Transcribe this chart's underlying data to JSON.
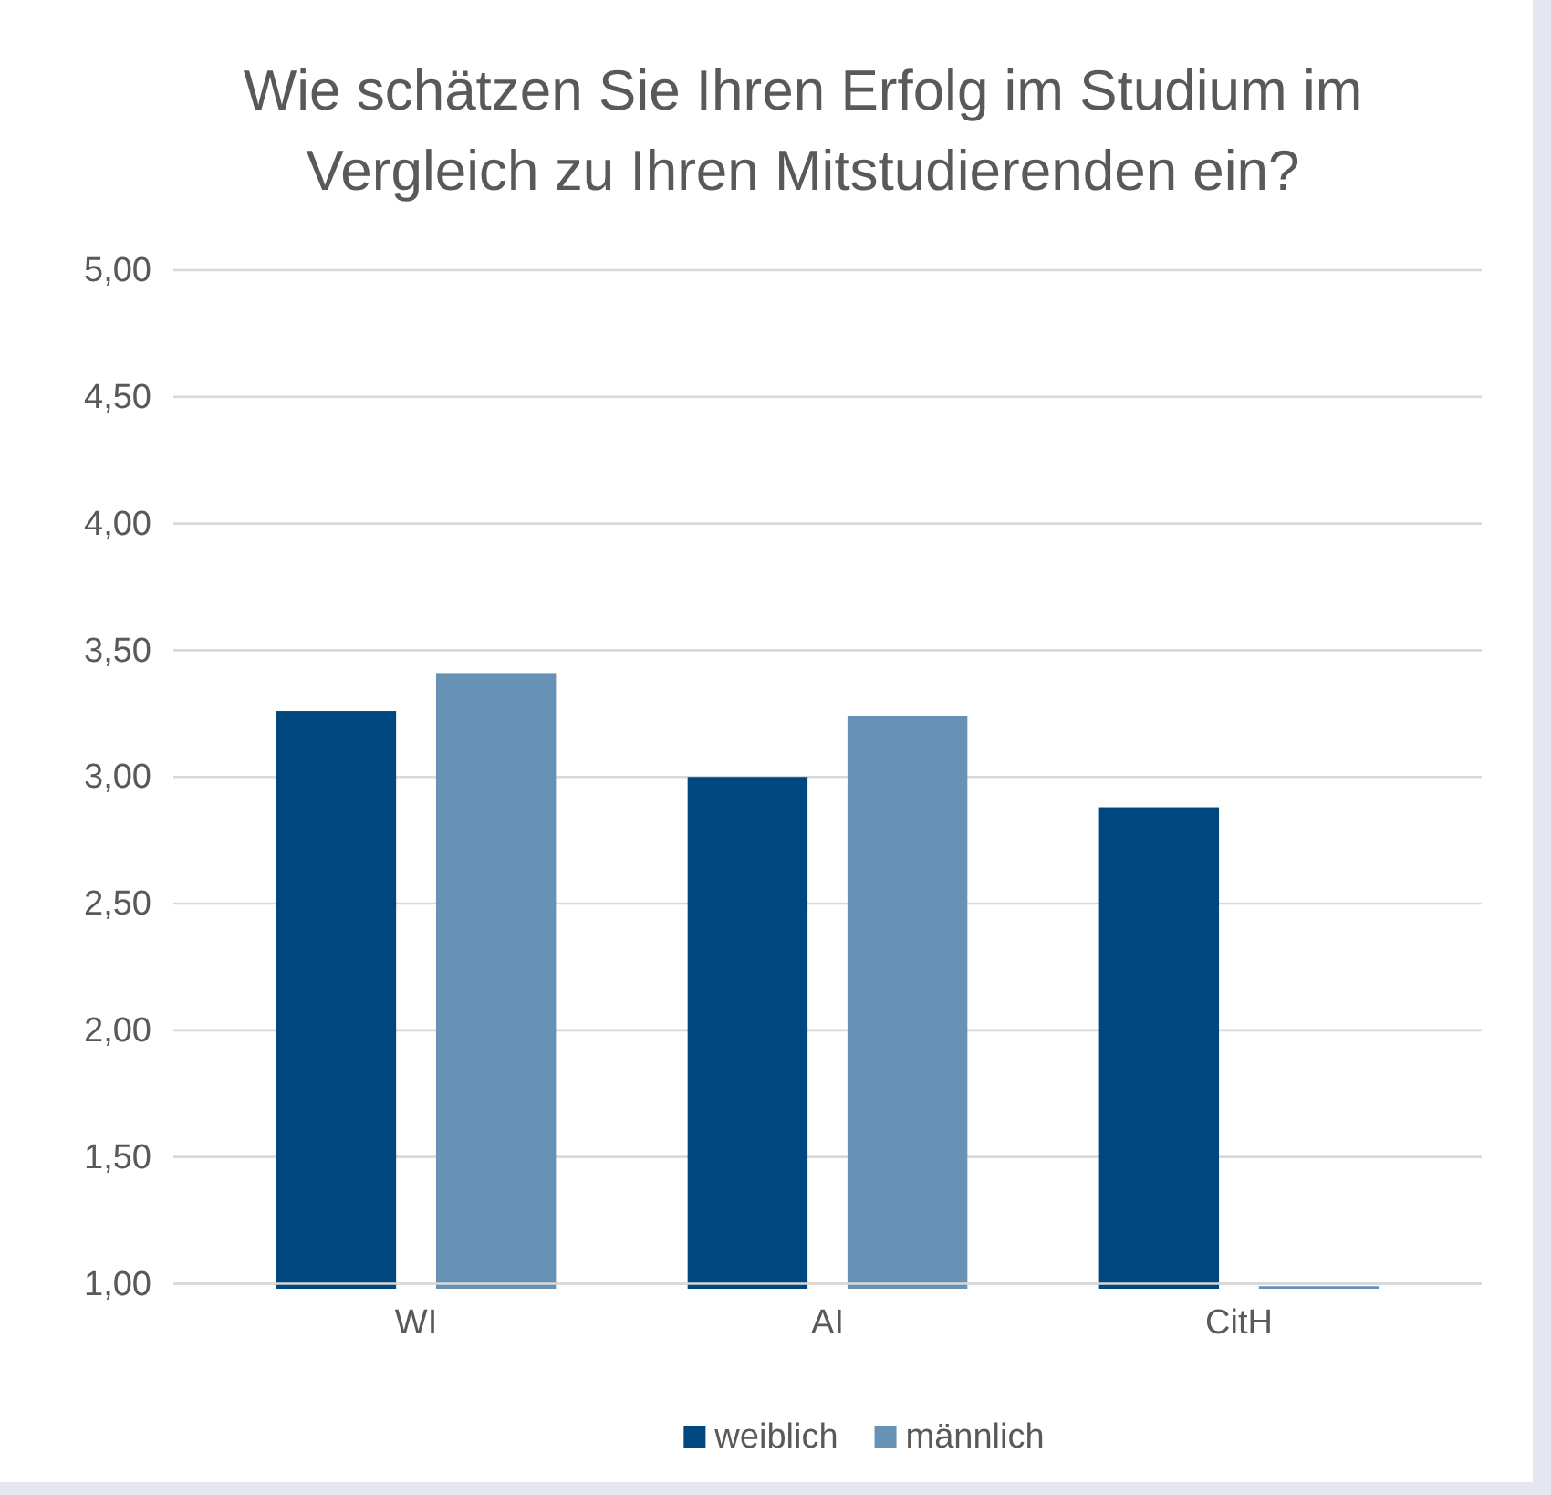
{
  "chart_data": {
    "type": "bar",
    "title": "Wie schätzen Sie Ihren Erfolg im Studium im Vergleich zu Ihren Mitstudierenden ein?",
    "categories": [
      "WI",
      "AI",
      "CitH"
    ],
    "series": [
      {
        "name": "weiblich",
        "color": "#00467f",
        "values": [
          3.26,
          3.0,
          2.88
        ]
      },
      {
        "name": "männlich",
        "color": "#6792b5",
        "values": [
          3.41,
          3.24,
          0.99
        ]
      }
    ],
    "ylim": [
      0.98,
      5
    ],
    "yticks": [
      {
        "value": 1,
        "label": "1,00"
      },
      {
        "value": 1.5,
        "label": "1,50"
      },
      {
        "value": 2,
        "label": "2,00"
      },
      {
        "value": 2.5,
        "label": "2,50"
      },
      {
        "value": 3,
        "label": "3,00"
      },
      {
        "value": 3.5,
        "label": "3,50"
      },
      {
        "value": 4,
        "label": "4,00"
      },
      {
        "value": 4.5,
        "label": "4,50"
      },
      {
        "value": 5,
        "label": "5,00"
      }
    ],
    "grid": "y",
    "legend": "bottom"
  }
}
